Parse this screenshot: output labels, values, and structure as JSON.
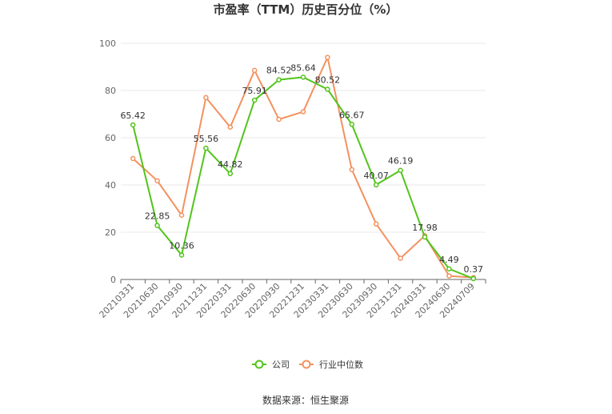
{
  "chart_data": {
    "type": "line",
    "title": "市盈率（TTM）历史百分位（%）",
    "x": [
      "20210331",
      "20210630",
      "20210930",
      "20211231",
      "20220331",
      "20220630",
      "20220930",
      "20221231",
      "20230331",
      "20230630",
      "20230930",
      "20231231",
      "20240331",
      "20240630",
      "20240709"
    ],
    "series": [
      {
        "name": "公司",
        "color": "#52c41a",
        "values": [
          65.42,
          22.85,
          10.36,
          55.56,
          44.82,
          75.91,
          84.52,
          85.64,
          80.52,
          65.67,
          40.07,
          46.19,
          17.98,
          4.49,
          0.37
        ],
        "labels": [
          "65.42",
          "22.85",
          "10.36",
          "55.56",
          "44.82",
          "75.91",
          "84.52",
          "85.64",
          "80.52",
          "65.67",
          "40.07",
          "46.19",
          "17.98",
          "4.49",
          "0.37"
        ]
      },
      {
        "name": "行业中位数",
        "color": "#f4915e",
        "values": [
          51.2,
          41.8,
          27.2,
          77.0,
          64.5,
          88.5,
          67.8,
          71.0,
          94.0,
          46.5,
          23.5,
          9.0,
          18.5,
          1.5,
          0.8
        ]
      }
    ],
    "yticks": [
      "0",
      "20",
      "40",
      "60",
      "80",
      "100"
    ],
    "ylim": [
      0,
      100
    ],
    "grid": true,
    "legend_position": "bottom-center"
  },
  "source": "数据来源：恒生聚源"
}
